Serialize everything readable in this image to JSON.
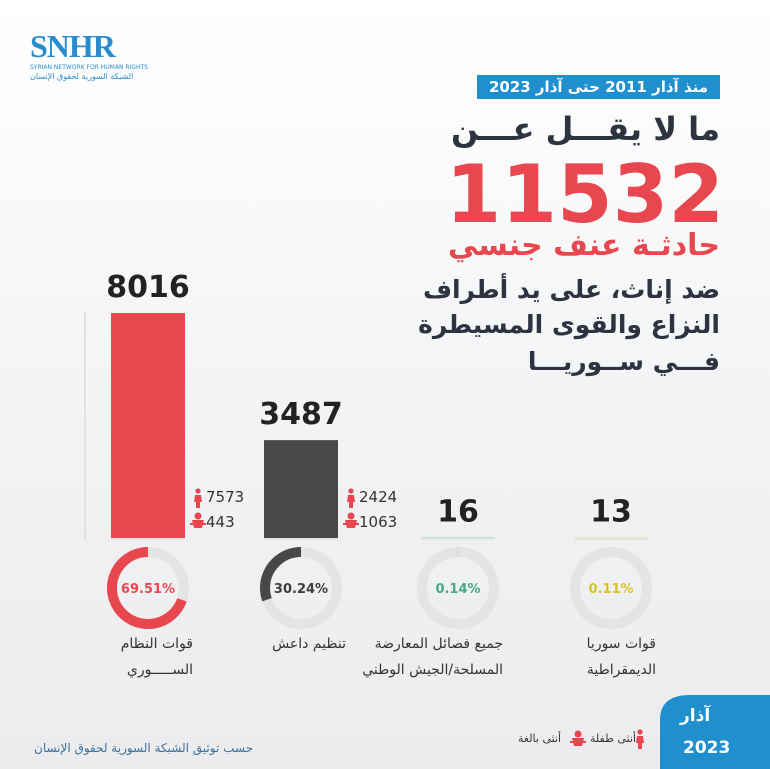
{
  "header": {
    "logo": "SNHR",
    "logo_sub_en": "SYRIAN NETWORK FOR HUMAN RIGHTS",
    "logo_sub_ar": "الشبكة السورية لحقوق الإنسان",
    "period": "منذ آذار 2011 حتى آذار 2023",
    "lead": "ما لا يقـــل عـــن",
    "total": 11532,
    "headline": "حادثـة عنف جنسي",
    "description": [
      "ضد إناث، على يد أطراف",
      "النزاع والقوى المسيطرة",
      "فـــي ســوريـــا"
    ]
  },
  "chart_data": {
    "type": "bar",
    "categories": [
      [
        "قوات النظام",
        "الســـــوري"
      ],
      [
        "تنظيم داعش"
      ],
      [
        "جميع فصائل المعارضة",
        "المسلحة/الجيش الوطني"
      ],
      [
        "قوات سوريا",
        "الديمقراطية"
      ]
    ],
    "values": [
      8016,
      3487,
      16,
      13
    ],
    "colors": [
      "#e8474f",
      "#4a4846",
      "#7fcfb0",
      "#ece07a"
    ],
    "shares": [
      69.51,
      30.24,
      0.14,
      0.11
    ],
    "shares_labels": [
      "69.51%",
      "30.24%",
      "0.14%",
      "0.11%"
    ],
    "share_label_colors": [
      "#e8474f",
      "#3f3d3b",
      "#4aa88a",
      "#d9c520"
    ],
    "women": [
      7573,
      2424,
      null,
      null
    ],
    "girls": [
      443,
      1063,
      null,
      null
    ],
    "ylim": [
      0,
      8016
    ]
  },
  "legend": {
    "women": "أنثى بالغة",
    "girls": "أنثى طفلة"
  },
  "footer": {
    "source": "حسب توثيق الشبكة السورية لحقوق الإنسان",
    "month": "آذار",
    "year": 2023
  }
}
